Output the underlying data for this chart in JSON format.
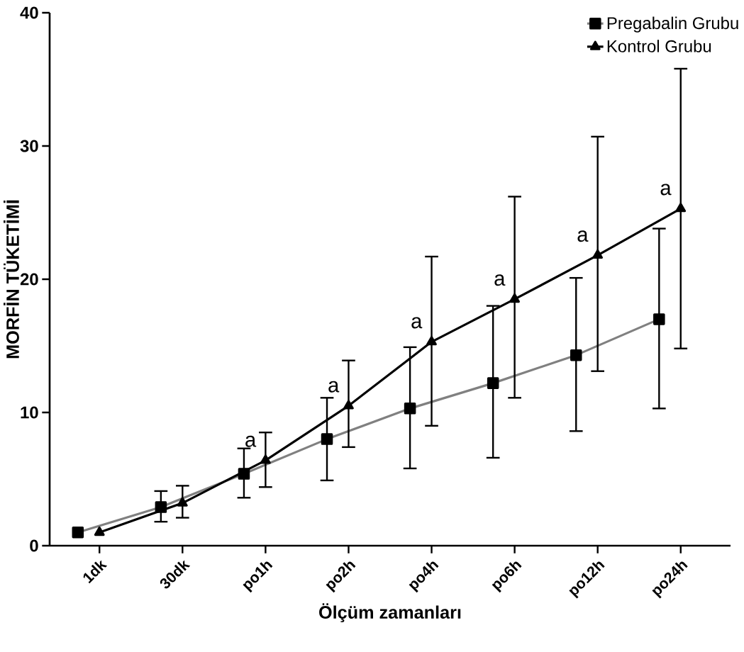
{
  "chart_data": {
    "type": "line",
    "xlabel": "Ölçüm zamanları",
    "ylabel": "MORFİN TÜKETİMİ",
    "categories": [
      "1dk",
      "30dk",
      "po1h",
      "po2h",
      "po4h",
      "po6h",
      "po12h",
      "po24h"
    ],
    "series": [
      {
        "name": "Pregabalin Grubu",
        "color": "#808080",
        "marker": "square",
        "values": [
          1.0,
          2.9,
          5.4,
          8.0,
          10.3,
          12.2,
          14.3,
          17.0
        ],
        "errors": [
          null,
          [
            1.8,
            4.1
          ],
          [
            3.6,
            7.3
          ],
          [
            4.9,
            11.1
          ],
          [
            5.8,
            14.9
          ],
          [
            6.6,
            18.0
          ],
          [
            8.6,
            20.1
          ],
          [
            10.3,
            23.8
          ]
        ]
      },
      {
        "name": "Kontrol Grubu",
        "color": "#000000",
        "marker": "triangle",
        "values": [
          1.0,
          3.2,
          6.4,
          10.5,
          15.3,
          18.5,
          21.8,
          25.3
        ],
        "errors": [
          null,
          [
            2.1,
            4.5
          ],
          [
            4.4,
            8.5
          ],
          [
            7.4,
            13.9
          ],
          [
            9.0,
            21.7
          ],
          [
            11.1,
            26.2
          ],
          [
            13.1,
            30.7
          ],
          [
            14.8,
            35.8
          ]
        ]
      }
    ],
    "ylim": [
      0,
      40
    ],
    "yticks": [
      0,
      10,
      20,
      30,
      40
    ],
    "grid": false,
    "legend": "top right",
    "line_style": "solid",
    "annotations": [
      "a",
      "a",
      "a",
      "a",
      "a",
      "a"
    ]
  }
}
